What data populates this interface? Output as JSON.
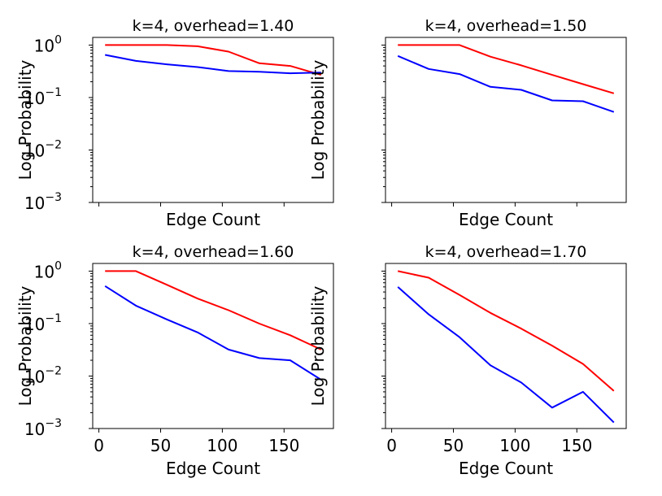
{
  "chart_data": [
    {
      "type": "line",
      "title": "k=4, overhead=1.40",
      "xlabel": "Edge Count",
      "ylabel": "Log Probability",
      "yscale": "log",
      "xlim": [
        -5,
        190
      ],
      "ylim": [
        0.001,
        1.4
      ],
      "yticks": [
        1,
        0.1,
        0.01,
        0.001
      ],
      "ytick_labels": [
        [
          "10",
          "0"
        ],
        [
          "10",
          "−1"
        ],
        [
          "10",
          "−2"
        ],
        [
          "10",
          "−3"
        ]
      ],
      "show_ytick_labels": true,
      "xticks": [
        0,
        50,
        100,
        150
      ],
      "xtick_labels": [],
      "show_xtick_labels": false,
      "x": [
        5,
        30,
        55,
        80,
        105,
        130,
        155,
        180
      ],
      "series": [
        {
          "name": "red",
          "color": "#ff0000",
          "values": [
            1.0,
            1.0,
            1.0,
            0.95,
            0.75,
            0.45,
            0.4,
            0.27
          ]
        },
        {
          "name": "blue",
          "color": "#0000ff",
          "values": [
            0.65,
            0.5,
            0.43,
            0.38,
            0.32,
            0.31,
            0.29,
            0.3
          ]
        }
      ]
    },
    {
      "type": "line",
      "title": "k=4, overhead=1.50",
      "xlabel": "Edge Count",
      "ylabel": "Log Probability",
      "yscale": "log",
      "xlim": [
        -5,
        190
      ],
      "ylim": [
        0.001,
        1.4
      ],
      "yticks": [
        1,
        0.1,
        0.01,
        0.001
      ],
      "ytick_labels": [],
      "show_ytick_labels": false,
      "xticks": [
        0,
        50,
        100,
        150
      ],
      "xtick_labels": [],
      "show_xtick_labels": false,
      "x": [
        5,
        30,
        55,
        80,
        105,
        130,
        155,
        180
      ],
      "series": [
        {
          "name": "red",
          "color": "#ff0000",
          "values": [
            1.0,
            1.0,
            1.0,
            0.6,
            0.41,
            0.27,
            0.18,
            0.12
          ]
        },
        {
          "name": "blue",
          "color": "#0000ff",
          "values": [
            0.62,
            0.35,
            0.28,
            0.16,
            0.14,
            0.088,
            0.085,
            0.053
          ]
        }
      ]
    },
    {
      "type": "line",
      "title": "k=4, overhead=1.60",
      "xlabel": "Edge Count",
      "ylabel": "Log Probability",
      "yscale": "log",
      "xlim": [
        -5,
        190
      ],
      "ylim": [
        0.001,
        1.4
      ],
      "yticks": [
        1,
        0.1,
        0.01,
        0.001
      ],
      "ytick_labels": [
        [
          "10",
          "0"
        ],
        [
          "10",
          "−1"
        ],
        [
          "10",
          "−2"
        ],
        [
          "10",
          "−3"
        ]
      ],
      "show_ytick_labels": true,
      "xticks": [
        0,
        50,
        100,
        150
      ],
      "xtick_labels": [
        "0",
        "50",
        "100",
        "150"
      ],
      "show_xtick_labels": true,
      "x": [
        5,
        30,
        55,
        80,
        105,
        130,
        155,
        180
      ],
      "series": [
        {
          "name": "red",
          "color": "#ff0000",
          "values": [
            1.0,
            1.0,
            0.55,
            0.3,
            0.18,
            0.1,
            0.06,
            0.032
          ]
        },
        {
          "name": "blue",
          "color": "#0000ff",
          "values": [
            0.52,
            0.22,
            0.12,
            0.068,
            0.032,
            0.022,
            0.02,
            0.0085
          ]
        }
      ]
    },
    {
      "type": "line",
      "title": "k=4, overhead=1.70",
      "xlabel": "Edge Count",
      "ylabel": "Log Probability",
      "yscale": "log",
      "xlim": [
        -5,
        190
      ],
      "ylim": [
        0.001,
        1.4
      ],
      "yticks": [
        1,
        0.1,
        0.01,
        0.001
      ],
      "ytick_labels": [],
      "show_ytick_labels": false,
      "xticks": [
        0,
        50,
        100,
        150
      ],
      "xtick_labels": [
        "0",
        "50",
        "100",
        "150"
      ],
      "show_xtick_labels": true,
      "x": [
        5,
        30,
        55,
        80,
        105,
        130,
        155,
        180
      ],
      "series": [
        {
          "name": "red",
          "color": "#ff0000",
          "values": [
            1.0,
            0.75,
            0.35,
            0.16,
            0.08,
            0.038,
            0.017,
            0.0052
          ]
        },
        {
          "name": "blue",
          "color": "#0000ff",
          "values": [
            0.5,
            0.15,
            0.055,
            0.016,
            0.0075,
            0.0025,
            0.005,
            0.0013
          ]
        }
      ]
    }
  ]
}
